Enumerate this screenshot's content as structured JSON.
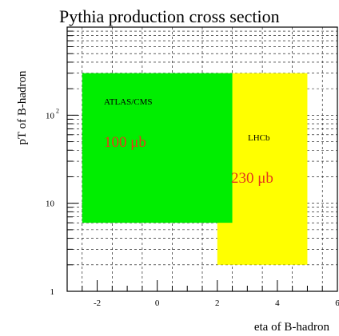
{
  "chart_data": {
    "type": "area",
    "title": "Pythia production cross section",
    "xlabel": "eta of B-hadron",
    "ylabel": "pT of B-hadron",
    "xlim": [
      -3,
      6
    ],
    "ylim": [
      1,
      1000
    ],
    "y_scale": "log",
    "grid": true,
    "x_ticks": [
      {
        "value": -2,
        "label": "-2"
      },
      {
        "value": 0,
        "label": "0"
      },
      {
        "value": 2,
        "label": "2"
      },
      {
        "value": 4,
        "label": "4"
      },
      {
        "value": 6,
        "label": "6"
      }
    ],
    "y_ticks": [
      {
        "value": 1,
        "label": "1"
      },
      {
        "value": 10,
        "label": "10"
      },
      {
        "value": 100,
        "label": "10",
        "exponent": "2"
      }
    ],
    "regions": [
      {
        "name": "LHCb",
        "label": "LHCb",
        "value_label": "230 μb",
        "color": "#ffff00",
        "x_range": [
          2,
          5
        ],
        "y_range": [
          2,
          300
        ]
      },
      {
        "name": "ATLAS/CMS",
        "label": "ATLAS/CMS",
        "value_label": "100 μb",
        "color": "#00ee00",
        "x_range": [
          -2.5,
          2.5
        ],
        "y_range": [
          6,
          300
        ]
      }
    ]
  }
}
